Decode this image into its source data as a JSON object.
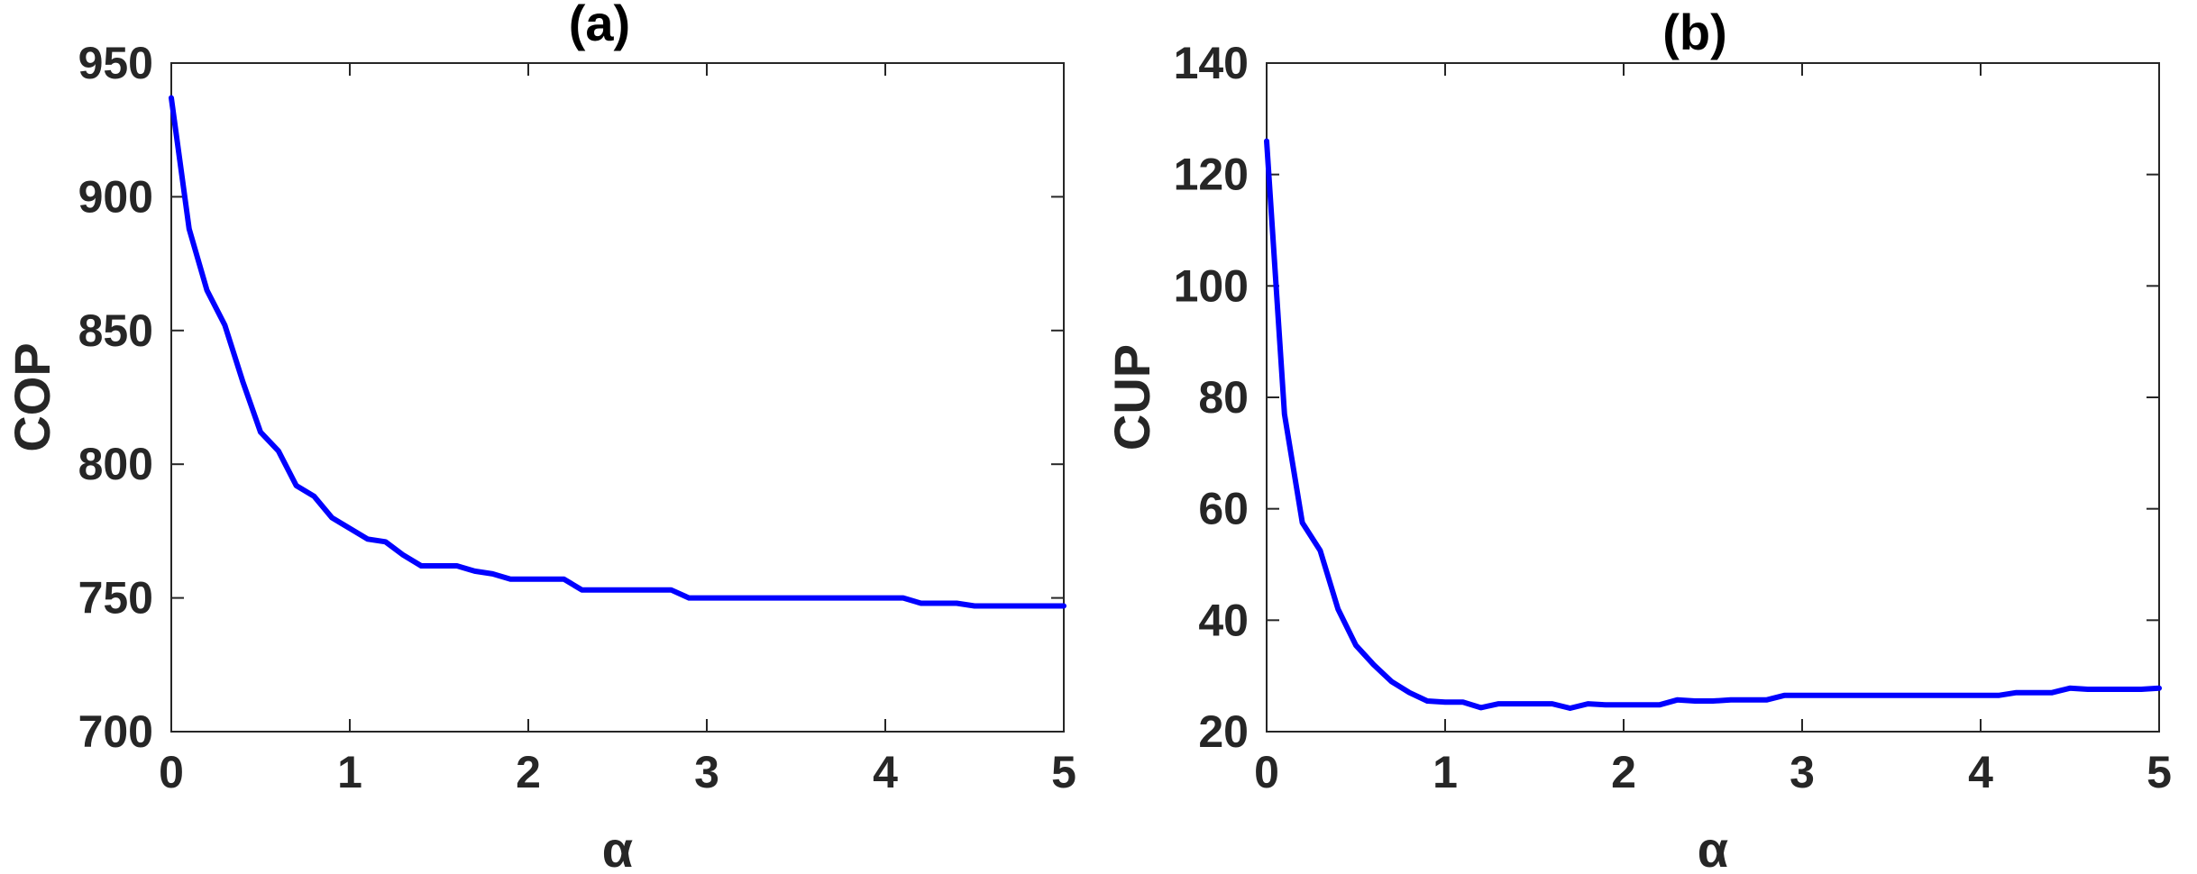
{
  "chart_data": [
    {
      "type": "line",
      "title": "(a)",
      "xlabel": "α",
      "ylabel": "COP",
      "xlim": [
        0,
        5
      ],
      "ylim": [
        700,
        950
      ],
      "xticks": [
        0,
        1,
        2,
        3,
        4,
        5
      ],
      "yticks": [
        700,
        750,
        800,
        850,
        900,
        950
      ],
      "grid": false,
      "color": "#0000ff",
      "x": [
        0,
        0.1,
        0.2,
        0.3,
        0.4,
        0.5,
        0.6,
        0.7,
        0.8,
        0.9,
        1.0,
        1.1,
        1.2,
        1.3,
        1.4,
        1.5,
        1.6,
        1.7,
        1.8,
        1.9,
        2.0,
        2.1,
        2.2,
        2.3,
        2.4,
        2.5,
        2.6,
        2.7,
        2.8,
        2.9,
        3.0,
        3.1,
        3.2,
        3.3,
        3.4,
        3.5,
        3.6,
        3.7,
        3.8,
        3.9,
        4.0,
        4.1,
        4.2,
        4.3,
        4.4,
        4.5,
        4.6,
        4.7,
        4.8,
        4.9,
        5.0
      ],
      "y": [
        937,
        888,
        865,
        852,
        831,
        812,
        805,
        792,
        788,
        780,
        776,
        772,
        771,
        766,
        762,
        762,
        762,
        760,
        759,
        757,
        757,
        757,
        757,
        753,
        753,
        753,
        753,
        753,
        753,
        750,
        750,
        750,
        750,
        750,
        750,
        750,
        750,
        750,
        750,
        750,
        750,
        750,
        748,
        748,
        748,
        747,
        747,
        747,
        747,
        747,
        747
      ]
    },
    {
      "type": "line",
      "title": "(b)",
      "xlabel": "α",
      "ylabel": "CUP",
      "xlim": [
        0,
        5
      ],
      "ylim": [
        20,
        140
      ],
      "xticks": [
        0,
        1,
        2,
        3,
        4,
        5
      ],
      "yticks": [
        20,
        40,
        60,
        80,
        100,
        120,
        140
      ],
      "grid": false,
      "color": "#0000ff",
      "x": [
        0,
        0.1,
        0.2,
        0.3,
        0.4,
        0.5,
        0.6,
        0.7,
        0.8,
        0.9,
        1.0,
        1.1,
        1.2,
        1.3,
        1.4,
        1.5,
        1.6,
        1.7,
        1.8,
        1.9,
        2.0,
        2.1,
        2.2,
        2.3,
        2.4,
        2.5,
        2.6,
        2.7,
        2.8,
        2.9,
        3.0,
        3.1,
        3.2,
        3.3,
        3.4,
        3.5,
        3.6,
        3.7,
        3.8,
        3.9,
        4.0,
        4.1,
        4.2,
        4.3,
        4.4,
        4.5,
        4.6,
        4.7,
        4.8,
        4.9,
        5.0
      ],
      "y": [
        126,
        77,
        57.5,
        52.5,
        42,
        35.5,
        32,
        29,
        27,
        25.5,
        25.3,
        25.3,
        24.3,
        25,
        25,
        25,
        25,
        24.2,
        25,
        24.8,
        24.8,
        24.8,
        24.8,
        25.7,
        25.5,
        25.5,
        25.7,
        25.7,
        25.7,
        26.5,
        26.5,
        26.5,
        26.5,
        26.5,
        26.5,
        26.5,
        26.5,
        26.5,
        26.5,
        26.5,
        26.5,
        26.5,
        27,
        27,
        27,
        27.8,
        27.6,
        27.6,
        27.6,
        27.6,
        27.8
      ]
    }
  ]
}
